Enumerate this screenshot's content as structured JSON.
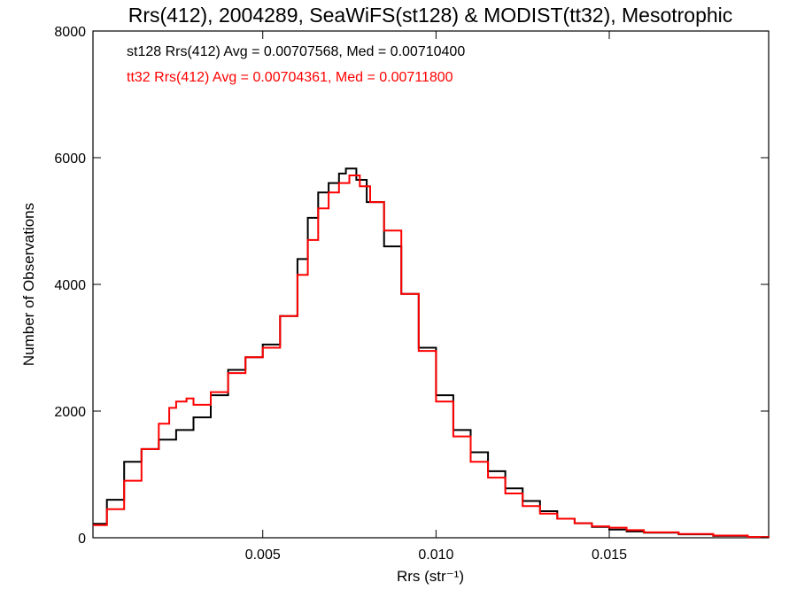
{
  "chart_data": {
    "type": "line",
    "title": "Rrs(412), 2004289, SeaWiFS(st128) & MODIST(tt32), Mesotrophic",
    "xlabel": "Rrs (str⁻¹)",
    "ylabel": "Number of Observations",
    "xlim": [
      0.0001,
      0.0196
    ],
    "ylim": [
      0,
      8000
    ],
    "x_ticks": [
      0.005,
      0.01,
      0.015
    ],
    "x_tick_labels": [
      "0.005",
      "0.010",
      "0.015"
    ],
    "y_ticks": [
      0,
      2000,
      4000,
      6000,
      8000
    ],
    "y_tick_labels": [
      "0",
      "2000",
      "4000",
      "6000",
      "8000"
    ],
    "annotations": [
      {
        "text": "st128 Rrs(412) Avg = 0.00707568, Med = 0.00710400",
        "color": "#000000"
      },
      {
        "text": "tt32 Rrs(412) Avg = 0.00704361, Med = 0.00711800",
        "color": "#ff0000"
      }
    ],
    "series": [
      {
        "color": "#000000",
        "x": [
          0.0001,
          0.0005,
          0.001,
          0.0015,
          0.002,
          0.0025,
          0.003,
          0.0035,
          0.004,
          0.0045,
          0.005,
          0.0055,
          0.006,
          0.0063,
          0.0066,
          0.0069,
          0.0072,
          0.0074,
          0.0077,
          0.008,
          0.0085,
          0.009,
          0.0095,
          0.01,
          0.0105,
          0.011,
          0.0115,
          0.012,
          0.0125,
          0.013,
          0.0135,
          0.014,
          0.0145,
          0.015,
          0.0155,
          0.016,
          0.017,
          0.018,
          0.019,
          0.0196
        ],
        "values": [
          220,
          600,
          1200,
          1400,
          1550,
          1700,
          1900,
          2250,
          2650,
          2850,
          3050,
          3500,
          4400,
          5050,
          5450,
          5600,
          5750,
          5830,
          5650,
          5300,
          4600,
          3850,
          3000,
          2250,
          1700,
          1350,
          1050,
          780,
          580,
          420,
          300,
          230,
          170,
          130,
          100,
          80,
          55,
          30,
          10,
          5
        ]
      },
      {
        "color": "#ff0000",
        "x": [
          0.0001,
          0.0005,
          0.001,
          0.0015,
          0.002,
          0.0023,
          0.0025,
          0.0028,
          0.003,
          0.0035,
          0.004,
          0.0045,
          0.005,
          0.0055,
          0.006,
          0.0063,
          0.0066,
          0.0069,
          0.0072,
          0.0075,
          0.0078,
          0.0081,
          0.0085,
          0.009,
          0.0095,
          0.01,
          0.0105,
          0.011,
          0.0115,
          0.012,
          0.0125,
          0.013,
          0.0135,
          0.014,
          0.0145,
          0.015,
          0.0155,
          0.016,
          0.017,
          0.018,
          0.019,
          0.0196
        ],
        "values": [
          200,
          450,
          900,
          1400,
          1800,
          2050,
          2150,
          2200,
          2100,
          2300,
          2600,
          2850,
          3000,
          3500,
          4150,
          4700,
          5200,
          5450,
          5600,
          5720,
          5550,
          5300,
          4850,
          3850,
          2950,
          2150,
          1600,
          1200,
          950,
          700,
          500,
          380,
          300,
          230,
          180,
          160,
          120,
          85,
          60,
          35,
          12,
          5
        ]
      }
    ]
  }
}
